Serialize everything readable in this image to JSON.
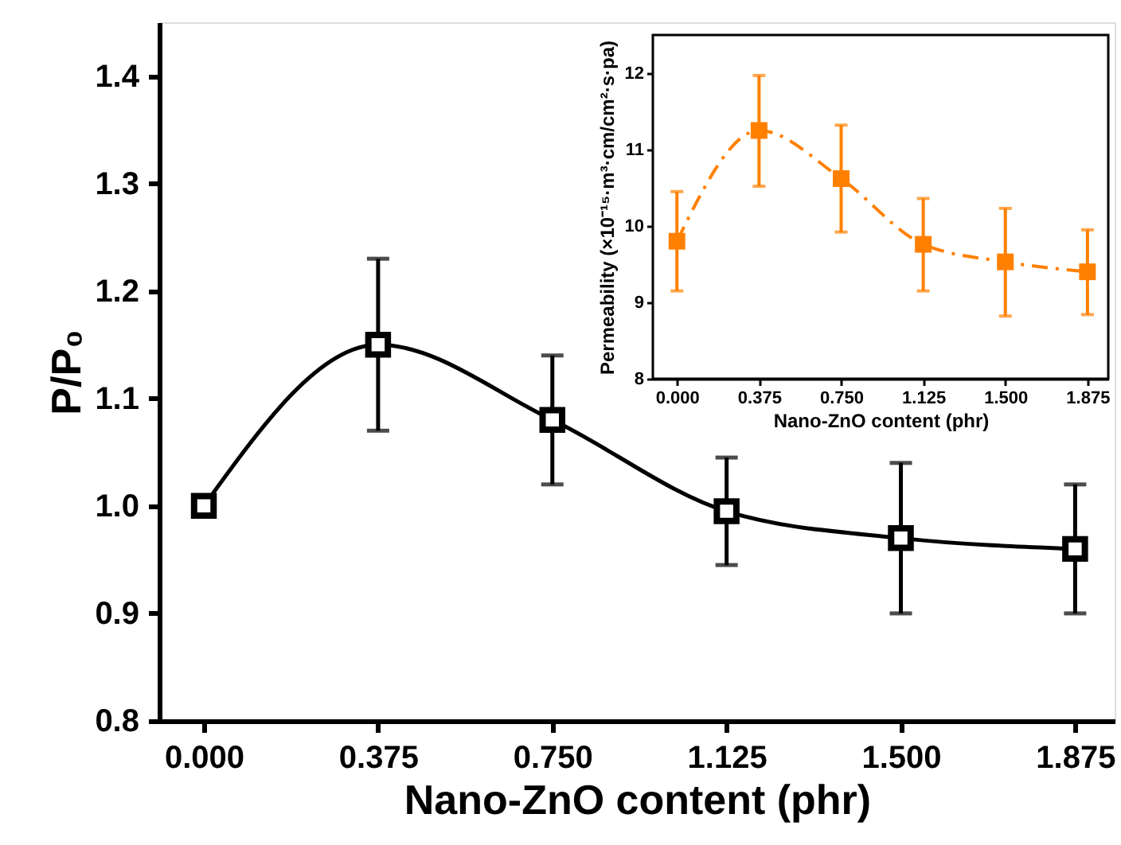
{
  "chart_data": [
    {
      "type": "line",
      "xlabel": "Nano-ZnO content (phr)",
      "ylabel": "P/P₀",
      "x": [
        0,
        0.375,
        0.75,
        1.125,
        1.5,
        1.875
      ],
      "series": [
        {
          "color": "#000000",
          "values": [
            1.0,
            1.15,
            1.08,
            0.995,
            0.97,
            0.96
          ],
          "errors": [
            null,
            [
              1.07,
              1.23
            ],
            [
              1.02,
              1.14
            ],
            [
              0.945,
              1.045
            ],
            [
              0.9,
              1.04
            ],
            [
              0.9,
              1.02
            ]
          ]
        }
      ],
      "xlim": [
        -0.096,
        1.96
      ],
      "ylim": [
        0.8,
        1.45
      ],
      "xticks": [
        {
          "value": 0,
          "label": "0.000"
        },
        0.375,
        {
          "value": 0.75,
          "label": "0.750"
        },
        1.125,
        {
          "value": 1.5,
          "label": "1.500"
        },
        1.875
      ],
      "yticks": [
        0.8,
        0.9,
        {
          "value": 1.0,
          "label": "1.0"
        },
        1.1,
        1.2,
        1.3,
        1.4
      ],
      "grid": false,
      "marker": "square",
      "line_style": "solid"
    },
    {
      "type": "line",
      "xlabel": "Nano-ZnO content (phr)",
      "ylabel": "Permeability (×10⁻¹⁵·m³·cm/cm²·s·pa)",
      "x": [
        0,
        0.375,
        0.75,
        1.125,
        1.5,
        1.875
      ],
      "series": [
        {
          "color": "#ff8000",
          "values": [
            9.8,
            11.25,
            10.62,
            9.76,
            9.53,
            9.4
          ],
          "errors": [
            [
              9.15,
              10.45
            ],
            [
              10.52,
              11.97
            ],
            [
              9.92,
              11.32
            ],
            [
              9.15,
              10.36
            ],
            [
              8.82,
              10.23
            ],
            [
              8.84,
              9.95
            ]
          ]
        }
      ],
      "xlim": [
        -0.11,
        1.97
      ],
      "ylim": [
        8,
        12.5
      ],
      "xticks": [
        {
          "value": 0,
          "label": "0.000"
        },
        0.375,
        {
          "value": 0.75,
          "label": "0.750"
        },
        1.125,
        {
          "value": 1.5,
          "label": "1.500"
        },
        1.875
      ],
      "yticks": [
        8,
        9,
        10,
        11,
        12
      ],
      "grid": false,
      "marker": "square",
      "line_style": "dashed"
    }
  ]
}
